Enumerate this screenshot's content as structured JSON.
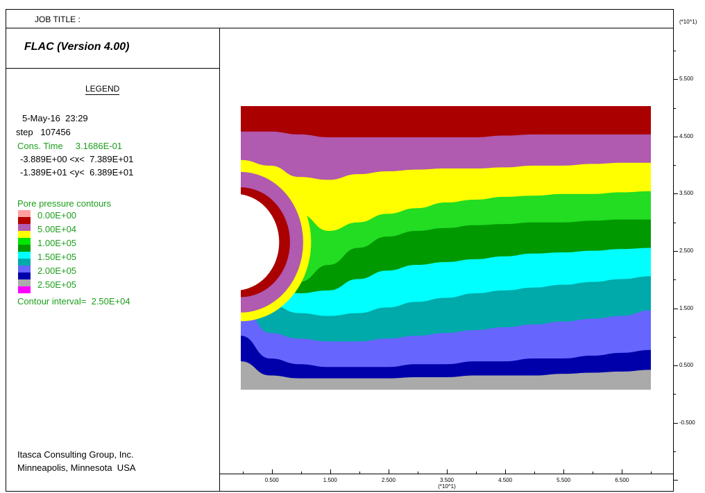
{
  "header": {
    "job_title": "JOB TITLE :"
  },
  "panel": {
    "version": "FLAC (Version 4.00)",
    "legend_title": "LEGEND",
    "date": "5-May-16  23:29",
    "step": "step   107456",
    "cons_time": "Cons. Time     3.1686E-01",
    "x_range": "-3.889E+00 <x<  7.389E+01",
    "y_range": "-1.389E+01 <y<  6.389E+01",
    "contour_title": "Pore pressure contours",
    "contour_interval": "Contour interval=  2.50E+04",
    "company_line1": "Itasca Consulting Group, Inc.",
    "company_line2": "Minneapolis, Minnesota  USA"
  },
  "chart_data": {
    "type": "heatmap",
    "title": "",
    "colorbar": {
      "labels": [
        "0.00E+00",
        "5.00E+04",
        "1.00E+05",
        "1.50E+05",
        "2.00E+05",
        "2.50E+05"
      ],
      "colors": [
        "#ffa0a0",
        "#b30000",
        "#b35cb3",
        "#ffff00",
        "#00e600",
        "#009900",
        "#00ffff",
        "#00aaaa",
        "#6666ff",
        "#0000aa",
        "#aaaaaa",
        "#ff00ff"
      ]
    },
    "zone_colors": [
      "#aa0000",
      "#b05ab0",
      "#ffff00",
      "#22dd22",
      "#009a00",
      "#00ffff",
      "#00aaaa",
      "#6666ff",
      "#0000aa",
      "#aaaaaa"
    ],
    "axes": {
      "scale_label": "(*10^1)",
      "x_ticks": [
        "0.500",
        "1.500",
        "2.500",
        "3.500",
        "4.500",
        "5.500",
        "6.500"
      ],
      "x_tick_values": [
        0.5,
        1.5,
        2.5,
        3.5,
        4.5,
        5.5,
        6.5
      ],
      "y_ticks": [
        "5.500",
        "4.500",
        "3.500",
        "2.500",
        "1.500",
        "0.500",
        "-0.500"
      ],
      "y_tick_values": [
        5.5,
        4.5,
        3.5,
        2.5,
        1.5,
        0.5,
        -0.5
      ],
      "xlim": [
        -0.3889,
        7.389
      ],
      "ylim": [
        -1.389,
        6.389
      ]
    },
    "model": {
      "x_extent": [
        0,
        7.0
      ],
      "y_extent": [
        0,
        5.0
      ],
      "tunnel_center": [
        0,
        2.6
      ],
      "tunnel_radius": 0.75
    }
  }
}
